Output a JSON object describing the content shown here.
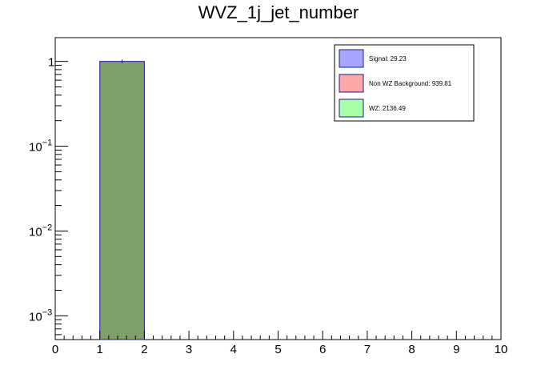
{
  "chart_data": {
    "type": "bar",
    "title": "WVZ_1j_jet_number",
    "xlabel": "",
    "ylabel": "",
    "xlim": [
      0,
      10
    ],
    "ylim_log10": [
      -3.28,
      0.28
    ],
    "log_y": true,
    "grid": false,
    "x_ticks": [
      "0",
      "1",
      "2",
      "3",
      "4",
      "5",
      "6",
      "7",
      "8",
      "9",
      "10"
    ],
    "y_ticks": [
      {
        "value": 1,
        "base": "1",
        "exp": ""
      },
      {
        "value": 0.1,
        "base": "10",
        "exp": "−1"
      },
      {
        "value": 0.01,
        "base": "10",
        "exp": "−2"
      },
      {
        "value": 0.001,
        "base": "10",
        "exp": "−3"
      }
    ],
    "bins": [
      {
        "x0": 1,
        "x1": 2,
        "value": 1.0,
        "error": 0.05
      }
    ],
    "bar_fill": "#7f9f6a",
    "bar_edge": "#1a1a8c",
    "legend": {
      "placement": "top-right",
      "entries": [
        {
          "label": "Signal: 29.23",
          "color": "#a6a6ff"
        },
        {
          "label": "Non WZ Background: 939.81",
          "color": "#ffa6a6"
        },
        {
          "label": "WZ: 2136.49",
          "color": "#a6ffa6"
        }
      ]
    }
  }
}
